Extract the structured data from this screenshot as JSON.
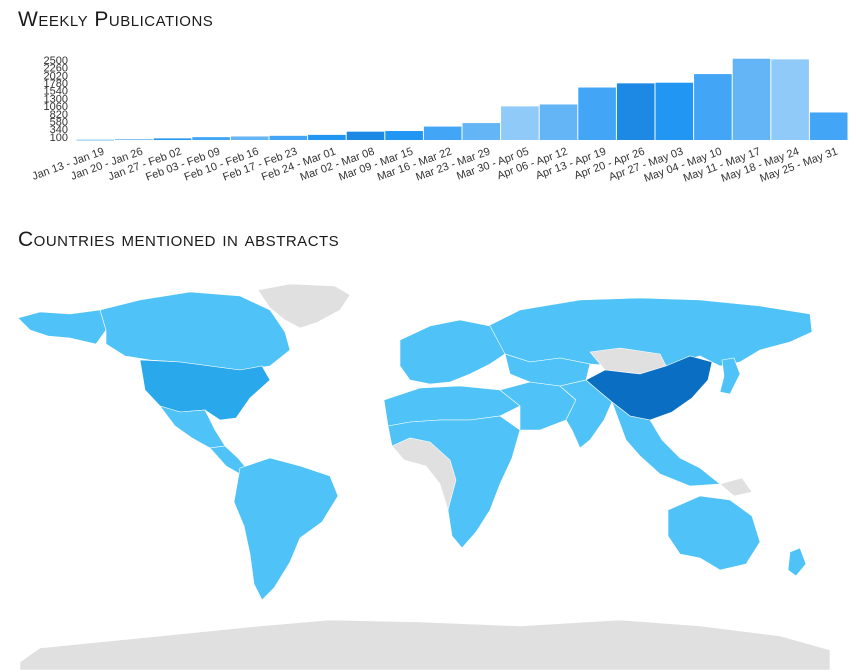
{
  "chart_section": {
    "title": "Weekly Publications"
  },
  "map_section": {
    "title": "Countries mentioned in abstracts"
  },
  "chart_data": {
    "type": "bar",
    "title": "Weekly Publications",
    "xlabel": "",
    "ylabel": "",
    "ylim": [
      0,
      2500
    ],
    "yticks": [
      100,
      340,
      580,
      820,
      1060,
      1300,
      1540,
      1780,
      2020,
      2260,
      2500
    ],
    "categories": [
      "Jan 13 - Jan 19",
      "Jan 20 - Jan 26",
      "Jan 27 - Feb 02",
      "Feb 03 - Feb 09",
      "Feb 10 - Feb 16",
      "Feb 17 - Feb 23",
      "Feb 24 - Mar 01",
      "Mar 02 - Mar 08",
      "Mar 09 - Mar 15",
      "Mar 16 - Mar 22",
      "Mar 23 - Mar 29",
      "Mar 30 - Apr 05",
      "Apr 06 - Apr 12",
      "Apr 13 - Apr 19",
      "Apr 20 - Apr 26",
      "Apr 27 - May 03",
      "May 04 - May 10",
      "May 11 - May 17",
      "May 18 - May 24",
      "May 25 - May 31"
    ],
    "values": [
      10,
      25,
      50,
      90,
      110,
      130,
      160,
      260,
      280,
      420,
      530,
      1050,
      1110,
      1640,
      1770,
      1790,
      2060,
      2540,
      2520,
      860
    ],
    "colors": [
      "#64b5f6",
      "#64b5f6",
      "#2196f3",
      "#42a5f5",
      "#64b5f6",
      "#42a5f5",
      "#2196f3",
      "#1e88e5",
      "#2196f3",
      "#42a5f5",
      "#64b5f6",
      "#90caf9",
      "#64b5f6",
      "#42a5f5",
      "#1e88e5",
      "#2196f3",
      "#42a5f5",
      "#64b5f6",
      "#90caf9",
      "#42a5f5"
    ],
    "grid": false,
    "legend": "none"
  },
  "map": {
    "type": "choropleth",
    "colors": {
      "none": "#e0e0e0",
      "low": "#4fc3f7",
      "mid": "#29a8ec",
      "high": "#0a6fc2"
    },
    "highest_region": "China"
  }
}
